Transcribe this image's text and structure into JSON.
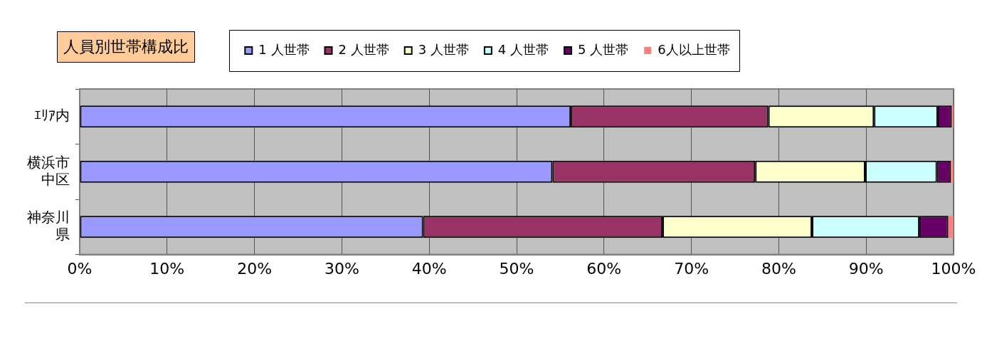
{
  "chart_data": {
    "type": "bar",
    "title": "人員別世帯構成比",
    "orientation": "horizontal",
    "stacked": true,
    "categories": [
      "ｴﾘｱ内",
      "横浜市中区",
      "神奈川県"
    ],
    "series": [
      {
        "name": "1 人世帯",
        "color": "#9999ff",
        "values": [
          56.2,
          54.1,
          39.3
        ]
      },
      {
        "name": "2 人世帯",
        "color": "#993366",
        "values": [
          22.6,
          23.2,
          27.4
        ]
      },
      {
        "name": "3 人世帯",
        "color": "#ffffcc",
        "values": [
          12.1,
          12.6,
          17.1
        ]
      },
      {
        "name": "4 人世帯",
        "color": "#ccffff",
        "values": [
          7.3,
          8.2,
          12.3
        ]
      },
      {
        "name": "5 人世帯",
        "color": "#660066",
        "values": [
          1.6,
          1.6,
          3.3
        ]
      },
      {
        "name": "6人以上世帯",
        "color": "#ff8080",
        "values": [
          0.2,
          0.3,
          0.6
        ]
      }
    ],
    "xlim": [
      0,
      100
    ],
    "xticks": [
      {
        "value": 0,
        "label": "0%"
      },
      {
        "value": 10,
        "label": "10%"
      },
      {
        "value": 20,
        "label": "20%"
      },
      {
        "value": 30,
        "label": "30%"
      },
      {
        "value": 40,
        "label": "40%"
      },
      {
        "value": 50,
        "label": "50%"
      },
      {
        "value": 60,
        "label": "60%"
      },
      {
        "value": 70,
        "label": "70%"
      },
      {
        "value": 80,
        "label": "80%"
      },
      {
        "value": 90,
        "label": "90%"
      },
      {
        "value": 100,
        "label": "100%"
      }
    ],
    "grid": "x",
    "legend": "top"
  }
}
